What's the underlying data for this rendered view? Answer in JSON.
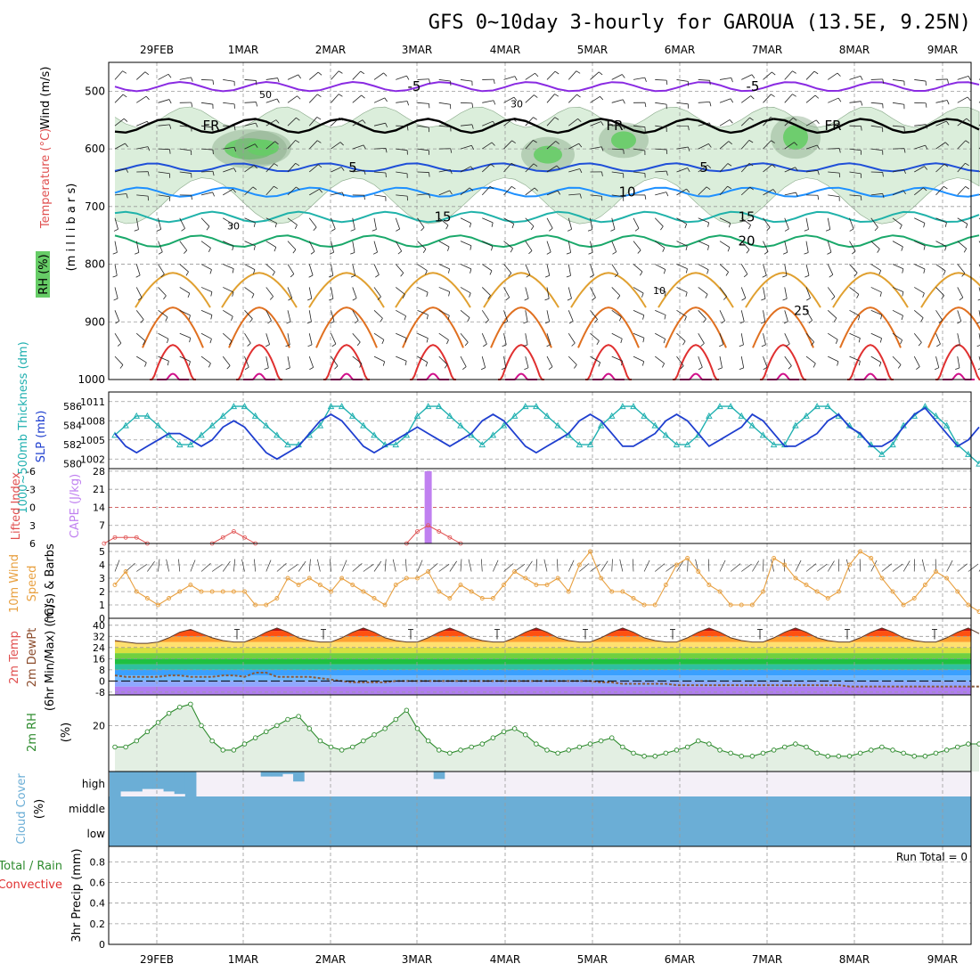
{
  "title": "GFS 0~10day 3-hourly for GAROUA (13.5E, 9.25N)",
  "dates": [
    "29FEB",
    "1MAR",
    "2MAR",
    "3MAR",
    "4MAR",
    "5MAR",
    "6MAR",
    "7MAR",
    "8MAR",
    "9MAR"
  ],
  "colors": {
    "temp_minus5": "#8a2be2",
    "temp_0": "#000000",
    "temp_5": "#1f4fd8",
    "temp_10": "#1e90ff",
    "temp_15": "#20b2aa",
    "temp_20": "#1aa86a",
    "temp_25": "#e0a030",
    "temp_30": "#e07020",
    "temp_35": "#e03030",
    "temp_40": "#d0108a",
    "rh_fill": "#cfe8cf",
    "rh_dark": "#88a888",
    "rh_green": "#66cc66",
    "slp": "#1f3fcf",
    "thickness": "#20b0b0",
    "cape": "#c080f0",
    "lifted": "#e05050",
    "wind": "#e8a040",
    "rh2m": "#2e8b2e",
    "cloud": "#6baed6",
    "precip_total": "#2e8b2e",
    "precip_conv": "#e03030"
  },
  "panels": {
    "upper": {
      "ylabel_wind": "Wind (m/s)",
      "ylabel_temp": "Temperature (°C)",
      "ylabel_rh": "RH (%)",
      "ylabel_units": "(m i l l i b a r s)",
      "yticks": [
        "500",
        "600",
        "700",
        "800",
        "900",
        "1000"
      ],
      "contour_labels": {
        "minus5": "-5",
        "fr": "FR",
        "five": "5",
        "ten": "10",
        "fifteen": "15",
        "twenty": "20",
        "twentyfive": "25",
        "rh30": "30",
        "rh50": "50",
        "rh10": "10"
      }
    },
    "slp": {
      "ylabel_thick": "1000~500mb Thickness (dm)",
      "ylabel_slp": "SLP (mb)",
      "yticks_thick": [
        "586",
        "584",
        "582",
        "580"
      ],
      "yticks_slp": [
        "1011",
        "1008",
        "1005",
        "1002"
      ]
    },
    "cape": {
      "ylabel_li": "Lifted Index",
      "ylabel_cape": "CAPE (J/kg)",
      "yticks_li": [
        "-6",
        "-3",
        "0",
        "3",
        "6"
      ],
      "yticks_cape": [
        "28",
        "21",
        "14",
        "7"
      ]
    },
    "wind10": {
      "ylabel_1": "10m Wind",
      "ylabel_2": "Speed",
      "ylabel_3": "(m/s) & Barbs",
      "yticks": [
        "5",
        "4",
        "3",
        "2",
        "1",
        "0"
      ]
    },
    "temp2m": {
      "ylabel_1": "2m Temp",
      "ylabel_2": "2m DewPt",
      "ylabel_3": "(6hr Min/Max) (°C)",
      "yticks": [
        "40",
        "32",
        "24",
        "16",
        "8",
        "0",
        "-8"
      ]
    },
    "rh2m": {
      "ylabel": "2m RH",
      "ylabel_units": "(%)",
      "yticks": [
        "20"
      ]
    },
    "cloud": {
      "ylabel": "Cloud Cover",
      "ylabel_units": "(%)",
      "levels": [
        "high",
        "middle",
        "low"
      ]
    },
    "precip": {
      "ylabel_1": "Total / Rain",
      "ylabel_2": "Convective",
      "ylabel_3": "3hr Precip (mm)",
      "yticks": [
        "0.8",
        "0.6",
        "0.4",
        "0.2",
        "0"
      ],
      "run_total": "Run Total = 0"
    }
  },
  "chart_data": {
    "type": "line",
    "x_unit": "3-hourly steps (81 steps, 10 days)",
    "slp_mb": [
      1006,
      1004,
      1003,
      1004,
      1005,
      1006,
      1006,
      1005,
      1004,
      1005,
      1007,
      1008,
      1007,
      1005,
      1003,
      1002,
      1003,
      1004,
      1006,
      1008,
      1009,
      1008,
      1006,
      1004,
      1003,
      1004,
      1005,
      1006,
      1007,
      1006,
      1005,
      1004,
      1005,
      1006,
      1008,
      1009,
      1008,
      1006,
      1004,
      1003,
      1004,
      1005,
      1006,
      1008,
      1009,
      1008,
      1006,
      1004,
      1004,
      1005,
      1006,
      1008,
      1009,
      1008,
      1006,
      1004,
      1005,
      1006,
      1007,
      1009,
      1008,
      1006,
      1004,
      1004,
      1005,
      1006,
      1008,
      1009,
      1007,
      1006,
      1004,
      1004,
      1005,
      1007,
      1009,
      1010,
      1008,
      1006,
      1004,
      1005,
      1007
    ],
    "thickness_dm": [
      583,
      584,
      585,
      585,
      584,
      583,
      582,
      582,
      583,
      584,
      585,
      586,
      586,
      585,
      584,
      583,
      582,
      582,
      583,
      584,
      586,
      586,
      585,
      584,
      583,
      582,
      582,
      583,
      585,
      586,
      586,
      585,
      584,
      583,
      582,
      583,
      584,
      585,
      586,
      586,
      585,
      584,
      583,
      582,
      582,
      584,
      585,
      586,
      586,
      585,
      584,
      583,
      582,
      582,
      583,
      585,
      586,
      586,
      585,
      584,
      583,
      582,
      582,
      584,
      585,
      586,
      586,
      585,
      584,
      583,
      582,
      581,
      582,
      584,
      585,
      586,
      585,
      584,
      582,
      581,
      580
    ],
    "cape_jkg": [
      0,
      0,
      0,
      0,
      0,
      0,
      0,
      0,
      0,
      0,
      0,
      0,
      0,
      0,
      0,
      0,
      0,
      0,
      0,
      0,
      0,
      0,
      0,
      0,
      0,
      0,
      0,
      0,
      0,
      28,
      0,
      0,
      0,
      0,
      0,
      0,
      0,
      0,
      0,
      0,
      0,
      0,
      0,
      0,
      0,
      0,
      0,
      0,
      0,
      0,
      0,
      0,
      0,
      0,
      0,
      0,
      0,
      0,
      0,
      0,
      0,
      0,
      0,
      0,
      0,
      0,
      0,
      0,
      0,
      0,
      0,
      0,
      0,
      0,
      0,
      0,
      0,
      0,
      0,
      0,
      0
    ],
    "lifted_index": [
      5,
      5,
      5,
      6,
      6,
      6,
      6,
      6,
      6,
      6,
      5,
      4,
      5,
      6,
      6,
      6,
      6,
      6,
      6,
      6,
      6,
      6,
      6,
      6,
      6,
      6,
      6,
      6,
      4,
      3,
      4,
      5,
      6,
      6,
      6,
      6,
      6,
      6,
      6,
      6,
      6,
      6,
      6,
      6,
      6,
      6,
      6,
      6,
      6,
      6,
      6,
      6,
      6,
      6,
      6,
      6,
      6,
      6,
      6,
      6,
      6,
      6,
      6,
      6,
      6,
      6,
      6,
      6,
      6,
      6,
      6,
      6,
      6,
      6,
      6,
      6,
      6,
      6,
      6,
      6,
      6
    ],
    "wind10_ms": [
      2.5,
      3.5,
      2,
      1.5,
      1,
      1.5,
      2,
      2.5,
      2,
      2,
      2,
      2,
      2,
      1,
      1,
      1.5,
      3,
      2.5,
      3,
      2.5,
      2,
      3,
      2.5,
      2,
      1.5,
      1,
      2.5,
      3,
      3,
      3.5,
      2,
      1.5,
      2.5,
      2,
      1.5,
      1.5,
      2.5,
      3.5,
      3,
      2.5,
      2.5,
      3,
      2,
      4,
      5,
      3,
      2,
      2,
      1.5,
      1,
      1,
      2.5,
      4,
      4.5,
      3.5,
      2.5,
      2,
      1,
      1,
      1,
      2,
      4.5,
      4,
      3,
      2.5,
      2,
      1.5,
      2,
      4,
      5,
      4.5,
      3,
      2,
      1,
      1.5,
      2.5,
      3.5,
      3,
      2,
      1,
      0.5
    ],
    "temp2m_c": [
      29,
      28,
      27,
      27,
      28,
      31,
      35,
      37,
      34,
      31,
      29,
      28,
      28,
      31,
      35,
      38,
      35,
      31,
      29,
      28,
      28,
      31,
      35,
      38,
      35,
      31,
      29,
      28,
      28,
      31,
      35,
      38,
      35,
      31,
      29,
      28,
      28,
      31,
      35,
      38,
      35,
      31,
      29,
      28,
      28,
      31,
      35,
      38,
      35,
      31,
      29,
      28,
      28,
      31,
      35,
      38,
      35,
      31,
      29,
      28,
      28,
      31,
      35,
      38,
      35,
      31,
      29,
      28,
      28,
      31,
      35,
      38,
      35,
      31,
      29,
      28,
      28,
      31,
      35,
      38,
      34
    ],
    "dewpt2m_c": [
      4,
      3,
      3,
      3,
      3,
      4,
      4,
      3,
      3,
      3,
      4,
      4,
      3,
      6,
      6,
      3,
      3,
      3,
      3,
      2,
      1,
      0,
      -1,
      -1,
      -1,
      -1,
      0,
      0,
      0,
      0,
      0,
      0,
      0,
      0,
      0,
      0,
      0,
      0,
      0,
      0,
      0,
      0,
      0,
      0,
      0,
      -1,
      -1,
      -2,
      -2,
      -2,
      -2,
      -2,
      -3,
      -3,
      -3,
      -3,
      -3,
      -3,
      -3,
      -3,
      -3,
      -3,
      -3,
      -3,
      -3,
      -3,
      -3,
      -3,
      -4,
      -4,
      -4,
      -4,
      -4,
      -4,
      -4,
      -4,
      -4,
      -4,
      -4,
      -4,
      -4
    ],
    "rh2m_pct": [
      13,
      13,
      15,
      18,
      21,
      24,
      26,
      27,
      20,
      15,
      12,
      12,
      14,
      16,
      18,
      20,
      22,
      23,
      19,
      15,
      13,
      12,
      13,
      15,
      17,
      19,
      22,
      25,
      19,
      15,
      12,
      11,
      12,
      13,
      14,
      16,
      18,
      19,
      17,
      14,
      12,
      11,
      12,
      13,
      14,
      15,
      16,
      13,
      11,
      10,
      10,
      11,
      12,
      13,
      15,
      14,
      12,
      11,
      10,
      10,
      11,
      12,
      13,
      14,
      13,
      11,
      10,
      10,
      10,
      11,
      12,
      13,
      12,
      11,
      10,
      10,
      11,
      12,
      13,
      14,
      14
    ],
    "cloud_high_pct": [
      100,
      80,
      80,
      70,
      70,
      80,
      90,
      100,
      0,
      0,
      0,
      0,
      0,
      0,
      20,
      20,
      10,
      40,
      0,
      0,
      0,
      0,
      0,
      0,
      0,
      0,
      0,
      0,
      0,
      0,
      30,
      0,
      0,
      0,
      0,
      0,
      0,
      0,
      0,
      0,
      0,
      0,
      0,
      0,
      0,
      0,
      0,
      0,
      0,
      0,
      0,
      0,
      0,
      0,
      0,
      0,
      0,
      0,
      0,
      0,
      0,
      0,
      0,
      0,
      0,
      0,
      0,
      0,
      0,
      0,
      0,
      0,
      0,
      0,
      0,
      0,
      0,
      0,
      0,
      0,
      0
    ],
    "precip_mm": [
      0,
      0,
      0,
      0,
      0,
      0,
      0,
      0,
      0,
      0,
      0,
      0,
      0,
      0,
      0,
      0,
      0,
      0,
      0,
      0,
      0,
      0,
      0,
      0,
      0,
      0,
      0,
      0,
      0,
      0,
      0,
      0,
      0,
      0,
      0,
      0,
      0,
      0,
      0,
      0,
      0,
      0,
      0,
      0,
      0,
      0,
      0,
      0,
      0,
      0,
      0,
      0,
      0,
      0,
      0,
      0,
      0,
      0,
      0,
      0,
      0,
      0,
      0,
      0,
      0,
      0,
      0,
      0,
      0,
      0,
      0,
      0,
      0,
      0,
      0,
      0,
      0,
      0,
      0,
      0,
      0
    ]
  }
}
